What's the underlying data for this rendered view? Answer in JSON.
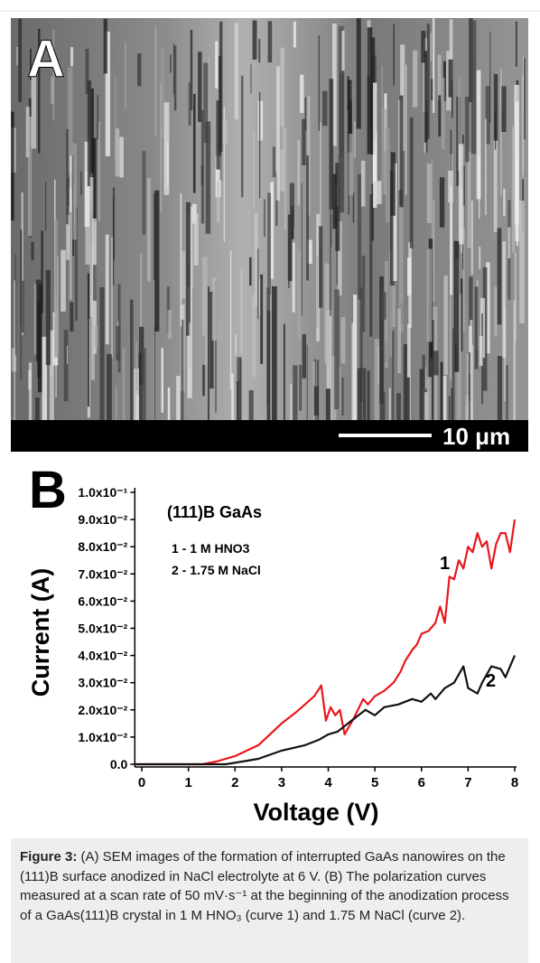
{
  "panel_a": {
    "label": "A",
    "scale_bar": "10 μm"
  },
  "chart_data": {
    "type": "line",
    "panel_label": "B",
    "annotations": [
      "(111)B GaAs",
      "1 - 1 M HNO3",
      "2 - 1.75 M NaCl",
      "1",
      "2"
    ],
    "xlabel": "Voltage (V)",
    "ylabel": "Current (A)",
    "xlim": [
      -0.15,
      8.0
    ],
    "ylim": [
      -0.001,
      0.1
    ],
    "xticks": [
      0,
      1,
      2,
      3,
      4,
      5,
      6,
      7,
      8
    ],
    "yticks": [
      {
        "value": 0,
        "label": "0.0"
      },
      {
        "value": 0.01,
        "label": "1.0x10⁻²"
      },
      {
        "value": 0.02,
        "label": "2.0x10⁻²"
      },
      {
        "value": 0.03,
        "label": "3.0x10⁻²"
      },
      {
        "value": 0.04,
        "label": "4.0x10⁻²"
      },
      {
        "value": 0.05,
        "label": "5.0x10⁻²"
      },
      {
        "value": 0.06,
        "label": "6.0x10⁻²"
      },
      {
        "value": 0.07,
        "label": "7.0x10⁻²"
      },
      {
        "value": 0.08,
        "label": "8.0x10⁻²"
      },
      {
        "value": 0.09,
        "label": "9.0x10⁻²"
      },
      {
        "value": 0.1,
        "label": "1.0x10⁻¹"
      }
    ],
    "series": [
      {
        "color": "#e8171b",
        "x": [
          -0.15,
          1.3,
          1.6,
          2.0,
          2.5,
          3.0,
          3.3,
          3.5,
          3.7,
          3.85,
          3.95,
          4.05,
          4.15,
          4.25,
          4.35,
          4.55,
          4.75,
          4.85,
          5.0,
          5.2,
          5.4,
          5.55,
          5.65,
          5.8,
          5.9,
          6.0,
          6.15,
          6.3,
          6.4,
          6.5,
          6.6,
          6.7,
          6.8,
          6.9,
          7.0,
          7.1,
          7.2,
          7.3,
          7.4,
          7.5,
          7.6,
          7.7,
          7.8,
          7.9,
          8.0
        ],
        "values": [
          0,
          0,
          0.001,
          0.003,
          0.007,
          0.015,
          0.019,
          0.022,
          0.025,
          0.029,
          0.016,
          0.021,
          0.018,
          0.02,
          0.011,
          0.017,
          0.024,
          0.022,
          0.025,
          0.027,
          0.03,
          0.034,
          0.038,
          0.042,
          0.044,
          0.048,
          0.049,
          0.052,
          0.058,
          0.052,
          0.069,
          0.068,
          0.075,
          0.072,
          0.08,
          0.078,
          0.085,
          0.08,
          0.082,
          0.072,
          0.081,
          0.085,
          0.085,
          0.078,
          0.09
        ]
      },
      {
        "color": "#111111",
        "x": [
          -0.15,
          1.8,
          2.5,
          3.0,
          3.5,
          3.8,
          4.0,
          4.2,
          4.5,
          4.8,
          5.0,
          5.2,
          5.5,
          5.8,
          6.0,
          6.2,
          6.3,
          6.5,
          6.7,
          6.9,
          7.0,
          7.2,
          7.3,
          7.5,
          7.7,
          7.8,
          8.0
        ],
        "values": [
          0,
          0,
          0.002,
          0.005,
          0.007,
          0.009,
          0.011,
          0.012,
          0.016,
          0.02,
          0.018,
          0.021,
          0.022,
          0.024,
          0.023,
          0.026,
          0.024,
          0.028,
          0.03,
          0.036,
          0.028,
          0.026,
          0.03,
          0.036,
          0.035,
          0.032,
          0.04
        ]
      }
    ]
  },
  "caption": {
    "label": "Figure 3:",
    "text": "(A) SEM images of the formation of interrupted GaAs nanowires on the (111)B surface anodized in NaCl electrolyte at 6 V. (B) The polarization curves measured at a scan rate of 50 mV·s⁻¹ at the beginning of the anodization process of a GaAs(111)B crystal in 1 M HNO₃ (curve 1) and 1.75 M NaCl (curve 2)."
  }
}
